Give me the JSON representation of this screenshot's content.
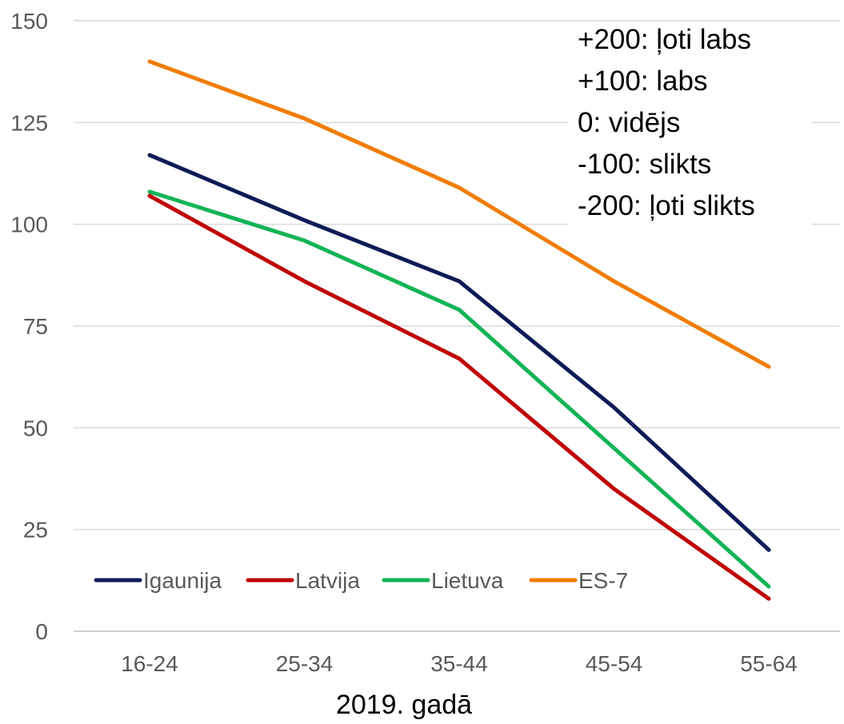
{
  "chart_data": {
    "type": "line",
    "categories": [
      "16-24",
      "25-34",
      "35-44",
      "45-54",
      "55-64"
    ],
    "series": [
      {
        "name": "Igaunija",
        "color": "#0d1b57",
        "values": [
          117,
          101,
          86,
          55,
          20
        ]
      },
      {
        "name": "Latvija",
        "color": "#c00000",
        "values": [
          107,
          86,
          67,
          35,
          8
        ]
      },
      {
        "name": "Lietuva",
        "color": "#13b456",
        "values": [
          108,
          96,
          79,
          45,
          11
        ]
      },
      {
        "name": "ES-7",
        "color": "#f07c00",
        "values": [
          140,
          126,
          109,
          86,
          65
        ]
      }
    ],
    "ylim": [
      0,
      150
    ],
    "yticks": [
      "0",
      "25",
      "50",
      "75",
      "100",
      "125",
      "150"
    ],
    "xlabel": "2019. gadā",
    "ylabel": "",
    "title": "",
    "grid": true,
    "legend_position": "bottom-left",
    "annotation_lines": [
      "+200: ļoti labs",
      "+100: labs",
      "0: vidējs",
      "-100: slikts",
      "-200: ļoti slikts"
    ],
    "annotation_position": "top-right"
  }
}
